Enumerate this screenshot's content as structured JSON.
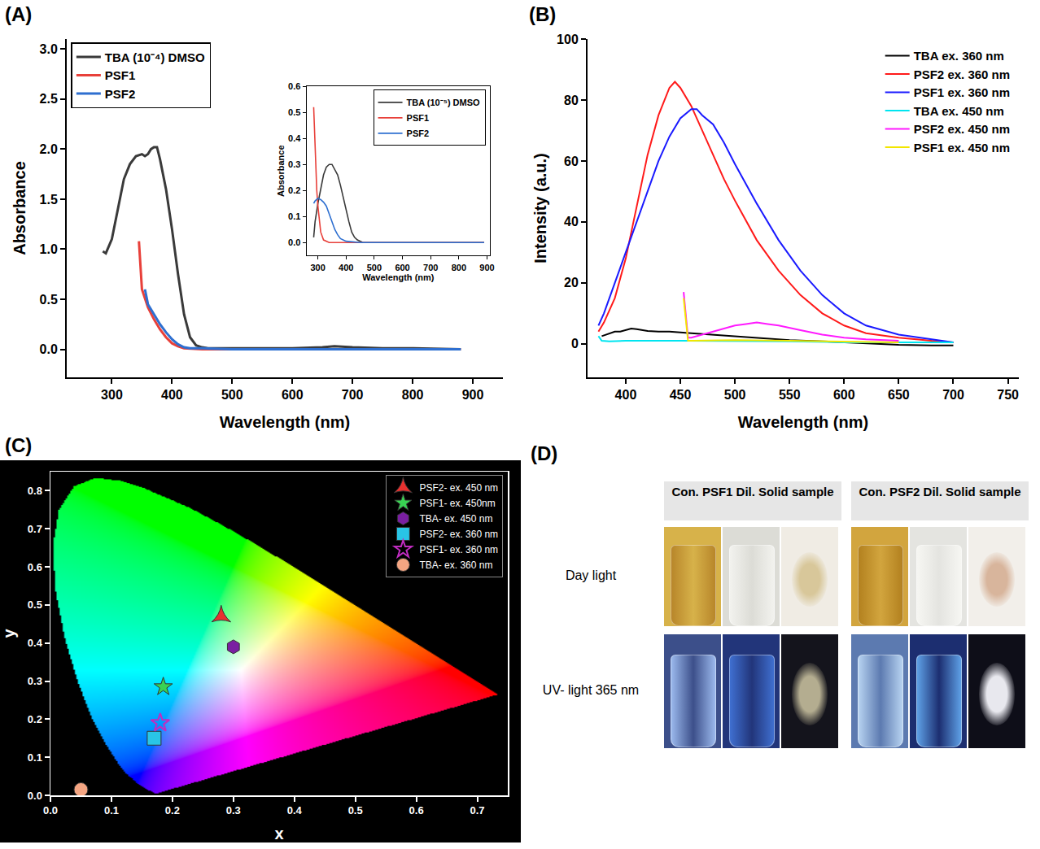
{
  "chart_data": [
    {
      "panel": "(A)",
      "type": "line",
      "x_label": "Wavelength (nm)",
      "y_label": "Absorbance",
      "xlim": [
        225,
        950
      ],
      "xticks": [
        300,
        400,
        500,
        600,
        700,
        800,
        900
      ],
      "ylim": [
        -0.28,
        3.1
      ],
      "yticks": [
        {
          "value": 0,
          "label": "0.0"
        },
        0.5,
        {
          "value": 1,
          "label": "1.0"
        },
        1.5,
        {
          "value": 2,
          "label": "2.0"
        },
        2.5,
        {
          "value": 3,
          "label": "3.0"
        }
      ],
      "grid": false,
      "legend": "top left",
      "series": [
        {
          "name": "TBA (10⁻⁴) DMSO",
          "color": "#3a3a3a",
          "x": [
            285,
            290,
            300,
            310,
            320,
            330,
            340,
            350,
            355,
            360,
            365,
            370,
            375,
            380,
            390,
            400,
            410,
            420,
            430,
            440,
            450,
            460,
            500,
            550,
            600,
            650,
            670,
            700,
            750,
            800,
            850,
            880
          ],
          "values": [
            0.98,
            0.96,
            1.1,
            1.4,
            1.7,
            1.85,
            1.93,
            1.95,
            1.93,
            1.95,
            2.0,
            2.02,
            2.02,
            1.9,
            1.6,
            1.2,
            0.75,
            0.35,
            0.12,
            0.04,
            0.02,
            0.01,
            0.01,
            0.01,
            0.01,
            0.02,
            0.03,
            0.02,
            0.01,
            0.01,
            0.0,
            0.0
          ]
        },
        {
          "name": "PSF1",
          "color": "#e8403a",
          "x": [
            345,
            350,
            360,
            370,
            380,
            390,
            400,
            410,
            420,
            430,
            450,
            500,
            600,
            700,
            800,
            880
          ],
          "values": [
            1.08,
            0.6,
            0.42,
            0.3,
            0.2,
            0.12,
            0.06,
            0.03,
            0.01,
            0.005,
            0.0,
            0.0,
            0.0,
            0.0,
            0.0,
            0.0
          ]
        },
        {
          "name": "PSF2",
          "color": "#2e6fd0",
          "x": [
            355,
            360,
            370,
            380,
            390,
            400,
            410,
            420,
            430,
            450,
            500,
            600,
            700,
            800,
            880
          ],
          "values": [
            0.6,
            0.45,
            0.35,
            0.25,
            0.17,
            0.1,
            0.05,
            0.02,
            0.01,
            0.01,
            0.0,
            0.0,
            0.0,
            0.0,
            0.0
          ]
        }
      ],
      "inset": {
        "type": "line",
        "x_label": "Wavelength (nm)",
        "y_label": "Absorbance",
        "xlim": [
          260,
          910
        ],
        "xticks": [
          300,
          400,
          500,
          600,
          700,
          800,
          900
        ],
        "ylim": [
          -0.05,
          0.6
        ],
        "yticks": [
          {
            "value": 0,
            "label": "0.0"
          },
          0.1,
          0.2,
          0.3,
          0.4,
          0.5,
          0.6
        ],
        "grid": false,
        "legend": "top right",
        "series": [
          {
            "name": "TBA (10⁻⁵) DMSO",
            "color": "#3a3a3a",
            "x": [
              285,
              290,
              300,
              310,
              320,
              330,
              340,
              350,
              360,
              370,
              380,
              390,
              400,
              410,
              420,
              430,
              440,
              460,
              500,
              600,
              700,
              800,
              890
            ],
            "values": [
              0.02,
              0.08,
              0.15,
              0.21,
              0.26,
              0.29,
              0.3,
              0.3,
              0.28,
              0.26,
              0.22,
              0.17,
              0.12,
              0.08,
              0.04,
              0.02,
              0.01,
              0.0,
              0.0,
              0.0,
              0.0,
              0.0,
              0.0
            ]
          },
          {
            "name": "PSF1",
            "color": "#e8403a",
            "x": [
              285,
              288,
              292,
              296,
              300,
              305,
              310,
              320,
              340,
              400,
              500,
              600,
              700,
              800,
              890
            ],
            "values": [
              0.52,
              0.42,
              0.3,
              0.2,
              0.14,
              0.08,
              0.04,
              0.01,
              0.0,
              0.0,
              0.0,
              0.0,
              0.0,
              0.0,
              0.0
            ]
          },
          {
            "name": "PSF2",
            "color": "#2e6fd0",
            "x": [
              285,
              290,
              300,
              310,
              320,
              330,
              340,
              350,
              360,
              370,
              380,
              400,
              450,
              500,
              600,
              700,
              800,
              890
            ],
            "values": [
              0.15,
              0.16,
              0.17,
              0.165,
              0.155,
              0.14,
              0.11,
              0.08,
              0.05,
              0.03,
              0.015,
              0.005,
              0.0,
              0.0,
              0.0,
              0.0,
              0.0,
              0.0
            ]
          }
        ]
      }
    },
    {
      "panel": "(B)",
      "type": "line",
      "x_label": "Wavelength (nm)",
      "y_label": "Intensity (a.u.)",
      "xlim": [
        365,
        760
      ],
      "xticks": [
        400,
        450,
        500,
        550,
        600,
        650,
        700,
        750
      ],
      "ylim": [
        -11,
        100
      ],
      "yticks": [
        0,
        20,
        40,
        60,
        80,
        100
      ],
      "grid": false,
      "legend": "top right",
      "series": [
        {
          "name": "TBA ex. 360 nm",
          "color": "#000000",
          "x": [
            378,
            385,
            390,
            395,
            400,
            405,
            410,
            420,
            430,
            440,
            460,
            480,
            500,
            520,
            550,
            580,
            600,
            630,
            650,
            680,
            700
          ],
          "values": [
            2.5,
            3.5,
            4,
            4,
            4.5,
            5,
            4.8,
            4.2,
            4,
            4,
            3.5,
            3,
            2.5,
            2,
            1.2,
            0.8,
            0.5,
            0,
            -0.3,
            -0.5,
            -0.5
          ]
        },
        {
          "name": "PSF2 ex. 360 nm",
          "color": "#ff1a1a",
          "x": [
            375,
            380,
            390,
            400,
            410,
            420,
            430,
            440,
            445,
            450,
            460,
            470,
            480,
            490,
            500,
            520,
            540,
            560,
            580,
            600,
            620,
            650,
            680,
            700
          ],
          "values": [
            4,
            7,
            15,
            28,
            45,
            62,
            75,
            84,
            86,
            84,
            78,
            70,
            62,
            54,
            47,
            34,
            24,
            16,
            10,
            6,
            3.5,
            2,
            1,
            0.5
          ]
        },
        {
          "name": "PSF1 ex. 360 nm",
          "color": "#1a1aff",
          "x": [
            375,
            380,
            390,
            400,
            410,
            420,
            430,
            440,
            450,
            460,
            465,
            470,
            480,
            490,
            500,
            520,
            540,
            560,
            580,
            600,
            620,
            650,
            680,
            700
          ],
          "values": [
            6,
            10,
            20,
            30,
            40,
            50,
            60,
            68,
            74,
            77,
            77,
            75,
            72,
            66,
            59,
            46,
            34,
            24,
            16,
            10,
            6,
            3,
            1.5,
            0.5
          ]
        },
        {
          "name": "TBA ex. 450 nm",
          "color": "#00e5f0",
          "x": [
            375,
            378,
            385,
            400,
            450,
            500,
            550,
            600,
            650,
            700
          ],
          "values": [
            2.5,
            1,
            0.8,
            1,
            1,
            1,
            0.8,
            0.5,
            0.5,
            0.5
          ]
        },
        {
          "name": "PSF2 ex. 450 nm",
          "color": "#ff1aff",
          "x": [
            453,
            455,
            457,
            460,
            470,
            480,
            490,
            500,
            510,
            520,
            530,
            540,
            560,
            580,
            600,
            620,
            650
          ],
          "values": [
            17,
            10,
            2,
            2,
            3,
            4,
            5,
            6,
            6.5,
            7,
            6.5,
            6,
            4.5,
            3,
            2,
            1.5,
            1
          ]
        },
        {
          "name": "PSF1 ex. 450 nm",
          "color": "#f2e600",
          "x": [
            453,
            455,
            457,
            460,
            500,
            550,
            600,
            650
          ],
          "values": [
            15,
            8,
            1,
            1,
            1.2,
            1,
            0.8,
            0.5
          ]
        }
      ]
    },
    {
      "panel": "(C)",
      "type": "scatter",
      "x_label": "x",
      "y_label": "y",
      "xlim": [
        0,
        0.75
      ],
      "xticks": [
        {
          "value": 0,
          "label": "0.0"
        },
        0.1,
        0.2,
        0.3,
        0.4,
        0.5,
        0.6,
        0.7
      ],
      "ylim": [
        0,
        0.85
      ],
      "yticks": [
        {
          "value": 0,
          "label": "0.0"
        },
        0.1,
        0.2,
        0.3,
        0.4,
        0.5,
        0.6,
        0.7,
        0.8
      ],
      "grid": false,
      "legend": "top right",
      "series": [
        {
          "name": "PSF2- ex. 450 nm",
          "color": "#e8312f",
          "marker": "star-triangle-up",
          "x": [
            0.28
          ],
          "values": [
            0.47
          ]
        },
        {
          "name": "PSF1- ex. 450nm",
          "color": "#39d353",
          "marker": "star",
          "x": [
            0.185
          ],
          "values": [
            0.285
          ]
        },
        {
          "name": "TBA- ex. 450 nm",
          "color": "#7a1fa2",
          "marker": "hexagon",
          "x": [
            0.3
          ],
          "values": [
            0.39
          ]
        },
        {
          "name": "PSF2- ex. 360 nm",
          "color": "#29c5e6",
          "marker": "square",
          "x": [
            0.17
          ],
          "values": [
            0.15
          ]
        },
        {
          "name": "PSF1- ex. 360 nm",
          "color": "#c02cc0",
          "marker": "star-open",
          "x": [
            0.18
          ],
          "values": [
            0.19
          ]
        },
        {
          "name": "TBA- ex. 360 nm",
          "color": "#f4a582",
          "marker": "circle",
          "x": [
            0.05
          ],
          "values": [
            0.015
          ]
        }
      ]
    }
  ],
  "photographs": {
    "panel": "(D)",
    "row_labels": [
      "Day light",
      "UV- light 365 nm"
    ],
    "groups": [
      {
        "header": "Con. PSF1 Dil. Solid sample"
      },
      {
        "header": "Con. PSF2 Dil. Solid sample"
      }
    ]
  }
}
